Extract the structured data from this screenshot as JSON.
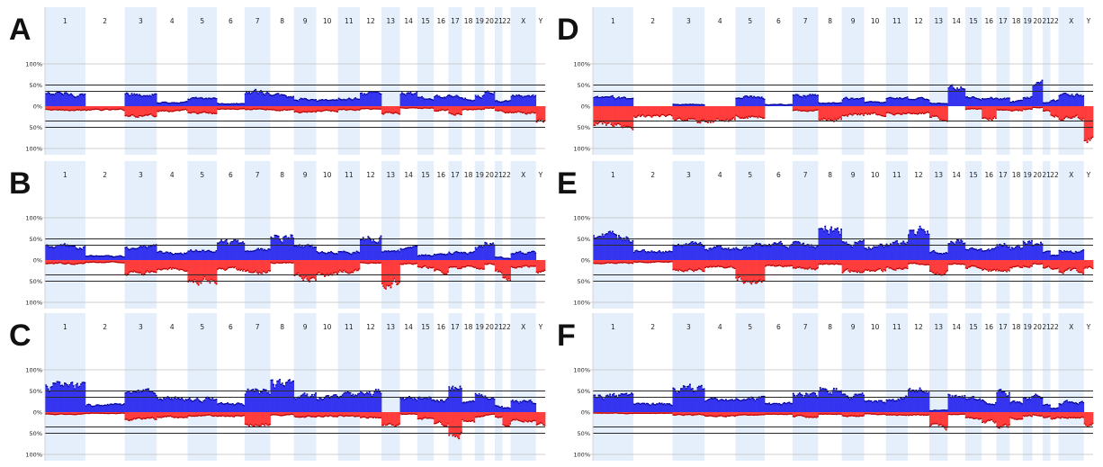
{
  "figure": {
    "colors": {
      "gain": "#3535f0",
      "gain_dark": "#00008a",
      "loss": "#ff3d3d",
      "loss_dark": "#b00000",
      "band": "#e4effb",
      "hline": "#2a2a2a",
      "gridline": "#bfbfbf"
    }
  },
  "chart_data": [
    {
      "panel": "A",
      "type": "area",
      "chromosomes": [
        "1",
        "2",
        "3",
        "4",
        "5",
        "6",
        "7",
        "8",
        "9",
        "10",
        "11",
        "12",
        "13",
        "14",
        "15",
        "16",
        "17",
        "18",
        "19",
        "20",
        "21",
        "22",
        "X",
        "Y"
      ],
      "y_tick_labels": [
        "100%",
        "50%",
        "0%",
        "50%",
        "100%"
      ],
      "ylim": [
        -100,
        100
      ],
      "threshold_lines": [
        50,
        35,
        -35,
        -50
      ],
      "gain_by_chromosome": [
        30,
        0,
        30,
        10,
        18,
        7,
        32,
        24,
        18,
        14,
        18,
        28,
        0,
        33,
        20,
        22,
        25,
        18,
        28,
        38,
        12,
        12,
        24,
        0
      ],
      "loss_by_chromosome": [
        -10,
        -10,
        -22,
        -12,
        -18,
        -8,
        -8,
        -10,
        -14,
        -12,
        -10,
        -8,
        -18,
        -5,
        -6,
        -12,
        -18,
        -10,
        -8,
        -6,
        -10,
        -16,
        -18,
        -40
      ]
    },
    {
      "panel": "B",
      "type": "area",
      "chromosomes": [
        "1",
        "2",
        "3",
        "4",
        "5",
        "6",
        "7",
        "8",
        "9",
        "10",
        "11",
        "12",
        "13",
        "14",
        "15",
        "16",
        "17",
        "18",
        "19",
        "20",
        "21",
        "22",
        "X",
        "Y"
      ],
      "y_tick_labels": [
        "100%",
        "50%",
        "0%",
        "50%",
        "100%"
      ],
      "ylim": [
        -100,
        100
      ],
      "threshold_lines": [
        50,
        35,
        -35,
        -50
      ],
      "gain_by_chromosome": [
        32,
        10,
        30,
        18,
        22,
        42,
        25,
        60,
        30,
        20,
        22,
        55,
        20,
        30,
        12,
        15,
        18,
        18,
        32,
        42,
        8,
        5,
        18,
        0
      ],
      "loss_by_chromosome": [
        -10,
        -6,
        -32,
        -22,
        -48,
        -24,
        -28,
        -8,
        -44,
        -36,
        -26,
        -8,
        -55,
        -10,
        -18,
        -30,
        -22,
        -16,
        -20,
        -10,
        -28,
        -42,
        -16,
        -30
      ]
    },
    {
      "panel": "C",
      "type": "area",
      "chromosomes": [
        "1",
        "2",
        "3",
        "4",
        "5",
        "6",
        "7",
        "8",
        "9",
        "10",
        "11",
        "12",
        "13",
        "14",
        "15",
        "16",
        "17",
        "18",
        "19",
        "20",
        "21",
        "22",
        "X",
        "Y"
      ],
      "y_tick_labels": [
        "100%",
        "50%",
        "0%",
        "50%",
        "100%"
      ],
      "ylim": [
        -100,
        100
      ],
      "threshold_lines": [
        50,
        35,
        -35,
        -50
      ],
      "gain_by_chromosome": [
        62,
        18,
        45,
        32,
        32,
        20,
        50,
        68,
        38,
        34,
        40,
        48,
        0,
        35,
        32,
        28,
        55,
        25,
        40,
        42,
        15,
        10,
        25,
        0
      ],
      "loss_by_chromosome": [
        -6,
        -4,
        -18,
        -12,
        -10,
        -10,
        -28,
        -8,
        -12,
        -10,
        -10,
        -14,
        -32,
        -6,
        -18,
        -28,
        -50,
        -22,
        -12,
        -8,
        -12,
        -28,
        -20,
        -30
      ]
    },
    {
      "panel": "D",
      "type": "area",
      "chromosomes": [
        "1",
        "2",
        "3",
        "4",
        "5",
        "6",
        "7",
        "8",
        "9",
        "10",
        "11",
        "12",
        "13",
        "14",
        "15",
        "16",
        "17",
        "18",
        "19",
        "20",
        "21",
        "22",
        "X",
        "Y"
      ],
      "y_tick_labels": [
        "100%",
        "50%",
        "0%",
        "50%",
        "100%"
      ],
      "ylim": [
        -100,
        100
      ],
      "threshold_lines": [
        50,
        35,
        -35,
        -50
      ],
      "gain_by_chromosome": [
        20,
        0,
        5,
        0,
        22,
        5,
        28,
        8,
        18,
        10,
        20,
        18,
        8,
        42,
        20,
        20,
        18,
        12,
        22,
        50,
        10,
        15,
        26,
        0
      ],
      "loss_by_chromosome": [
        -45,
        -25,
        -35,
        -35,
        -25,
        0,
        -12,
        -30,
        -22,
        -20,
        -18,
        -18,
        -30,
        0,
        -8,
        -30,
        -10,
        -12,
        -8,
        -5,
        -12,
        -22,
        -30,
        -75
      ]
    },
    {
      "panel": "E",
      "type": "area",
      "chromosomes": [
        "1",
        "2",
        "3",
        "4",
        "5",
        "6",
        "7",
        "8",
        "9",
        "10",
        "11",
        "12",
        "13",
        "14",
        "15",
        "16",
        "17",
        "18",
        "19",
        "20",
        "21",
        "22",
        "X",
        "Y"
      ],
      "y_tick_labels": [
        "100%",
        "50%",
        "0%",
        "50%",
        "100%"
      ],
      "ylim": [
        -100,
        100
      ],
      "threshold_lines": [
        50,
        35,
        -35,
        -50
      ],
      "gain_by_chromosome": [
        55,
        22,
        35,
        28,
        32,
        35,
        38,
        75,
        42,
        32,
        40,
        68,
        20,
        42,
        25,
        25,
        38,
        30,
        42,
        40,
        18,
        12,
        22,
        0
      ],
      "loss_by_chromosome": [
        -8,
        -6,
        -24,
        -18,
        -48,
        -14,
        -22,
        -10,
        -28,
        -26,
        -20,
        -10,
        -30,
        -10,
        -18,
        -28,
        -24,
        -18,
        -14,
        -10,
        -18,
        -24,
        -28,
        -20
      ]
    },
    {
      "panel": "F",
      "type": "area",
      "chromosomes": [
        "1",
        "2",
        "3",
        "4",
        "5",
        "6",
        "7",
        "8",
        "9",
        "10",
        "11",
        "12",
        "13",
        "14",
        "15",
        "16",
        "17",
        "18",
        "19",
        "20",
        "21",
        "22",
        "X",
        "Y"
      ],
      "y_tick_labels": [
        "100%",
        "50%",
        "0%",
        "50%",
        "100%"
      ],
      "ylim": [
        -100,
        100
      ],
      "threshold_lines": [
        50,
        35,
        -35,
        -50
      ],
      "gain_by_chromosome": [
        38,
        20,
        55,
        28,
        35,
        20,
        40,
        55,
        38,
        26,
        34,
        50,
        5,
        38,
        30,
        28,
        45,
        25,
        38,
        42,
        18,
        10,
        24,
        0
      ],
      "loss_by_chromosome": [
        -4,
        -4,
        -8,
        -10,
        -8,
        -6,
        -12,
        -6,
        -10,
        -6,
        -8,
        -8,
        -38,
        -6,
        -16,
        -24,
        -32,
        -16,
        -10,
        -8,
        -12,
        -16,
        -14,
        -30
      ]
    }
  ]
}
